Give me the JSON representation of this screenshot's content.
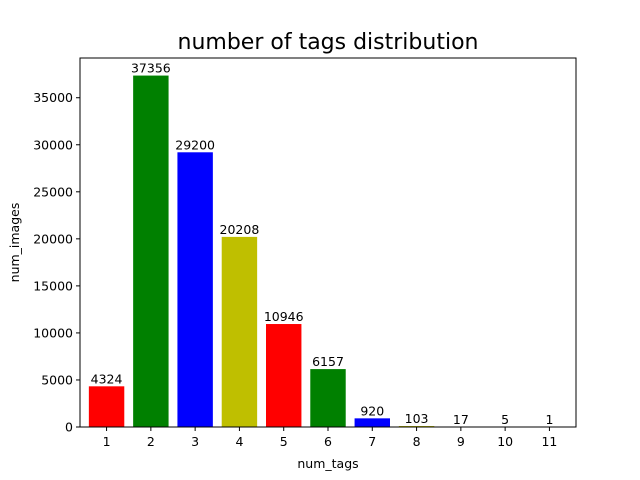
{
  "chart_data": {
    "type": "bar",
    "title": "number of tags distribution",
    "xlabel": "num_tags",
    "ylabel": "num_images",
    "categories": [
      "1",
      "2",
      "3",
      "4",
      "5",
      "6",
      "7",
      "8",
      "9",
      "10",
      "11"
    ],
    "values": [
      4324,
      37356,
      29200,
      20208,
      10946,
      6157,
      920,
      103,
      17,
      5,
      1
    ],
    "data_labels": [
      "4324",
      "37356",
      "29200",
      "20208",
      "10946",
      "6157",
      "920",
      "103",
      "17",
      "5",
      "1"
    ],
    "colors": [
      "#ff0000",
      "#008000",
      "#0000ff",
      "#bfbf00",
      "#ff0000",
      "#008000",
      "#0000ff",
      "#bfbf00",
      "#ff0000",
      "#008000",
      "#0000ff"
    ],
    "ylim": [
      0,
      39223
    ],
    "yticks": [
      0,
      5000,
      10000,
      15000,
      20000,
      25000,
      30000,
      35000
    ],
    "ytick_labels": [
      "0",
      "5000",
      "10000",
      "15000",
      "20000",
      "25000",
      "30000",
      "35000"
    ],
    "grid": false,
    "legend": "none"
  }
}
